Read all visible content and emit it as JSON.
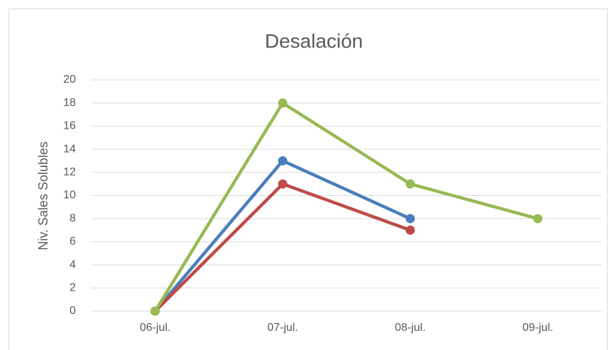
{
  "chart_data": {
    "type": "line",
    "title": "Desalación",
    "y_label": "Niv. Sales Solubles",
    "categories": [
      "06-jul.",
      "07-jul.",
      "08-jul.",
      "09-jul."
    ],
    "series": [
      {
        "color": "#4a7ebb",
        "values": [
          0,
          13,
          8,
          null
        ]
      },
      {
        "color": "#be4b48",
        "values": [
          0,
          11,
          7,
          null
        ]
      },
      {
        "color": "#98b954",
        "values": [
          0,
          18,
          11,
          8
        ]
      }
    ],
    "ylim": [
      0,
      20
    ],
    "yticks": [
      0,
      2,
      4,
      6,
      8,
      10,
      12,
      14,
      16,
      18,
      20
    ],
    "grid": true
  }
}
